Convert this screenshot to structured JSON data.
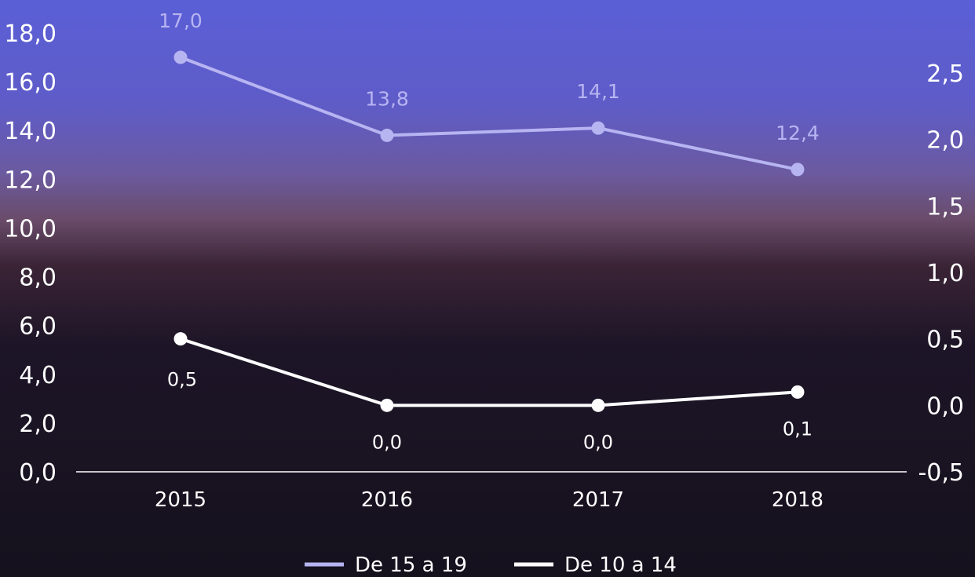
{
  "chart_data": {
    "type": "line",
    "categories": [
      "2015",
      "2016",
      "2017",
      "2018"
    ],
    "series": [
      {
        "name": "De 15 a 19",
        "axis": "left",
        "color": "#b7b4f2",
        "values": [
          17.0,
          13.8,
          14.1,
          12.4
        ],
        "labels": [
          "17,0",
          "13,8",
          "14,1",
          "12,4"
        ]
      },
      {
        "name": "De 10 a 14",
        "axis": "right",
        "color": "#ffffff",
        "values": [
          0.5,
          0.0,
          0.0,
          0.1
        ],
        "labels": [
          "0,5",
          "0,0",
          "0,0",
          "0,1"
        ]
      }
    ],
    "left_axis": {
      "ylim": [
        0,
        18
      ],
      "ticks": [
        0,
        2,
        4,
        6,
        8,
        10,
        12,
        14,
        16,
        18
      ],
      "tick_labels": [
        "0,0",
        "2,0",
        "4,0",
        "6,0",
        "8,0",
        "10,0",
        "12,0",
        "14,0",
        "16,0",
        "18,0"
      ]
    },
    "right_axis": {
      "ylim": [
        -0.5,
        2.5
      ],
      "ticks": [
        -0.5,
        0,
        0.5,
        1.0,
        1.5,
        2.0,
        2.5
      ],
      "tick_labels": [
        "-0,5",
        "0,0",
        "0,5",
        "1,0",
        "1,5",
        "2,0",
        "2,5"
      ]
    },
    "legend_position": "bottom-center",
    "grid": false
  }
}
